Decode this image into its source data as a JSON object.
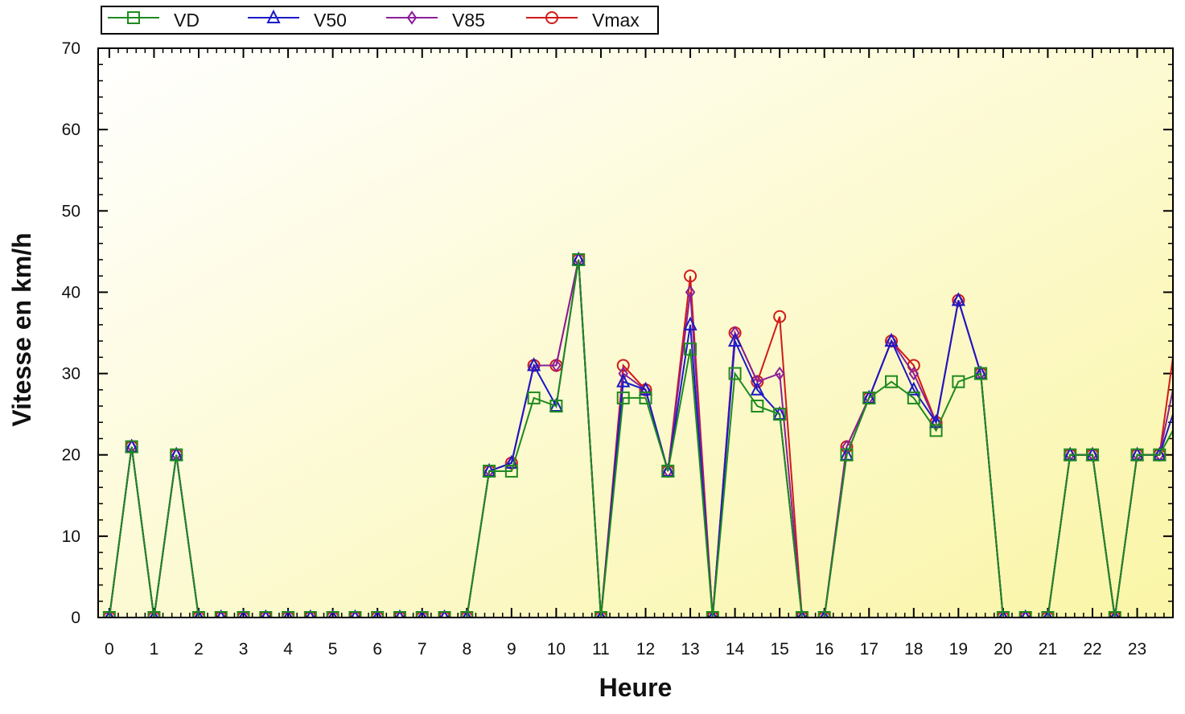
{
  "chart_data": {
    "type": "line",
    "title": "",
    "xlabel": "Heure",
    "ylabel": "Vitesse en km/h",
    "xlim": [
      -0.25,
      23.8
    ],
    "ylim": [
      0,
      70
    ],
    "xticks": [
      0,
      1,
      2,
      3,
      4,
      5,
      6,
      7,
      8,
      9,
      10,
      11,
      12,
      13,
      14,
      15,
      16,
      17,
      18,
      19,
      20,
      21,
      22,
      23
    ],
    "yticks": [
      0,
      10,
      20,
      30,
      40,
      50,
      60,
      70
    ],
    "grid": false,
    "legend_position": "top-left",
    "background": [
      "#ffffff",
      "#fbf7b0"
    ],
    "x": [
      0,
      0.5,
      1,
      1.5,
      2,
      2.5,
      3,
      3.5,
      4,
      4.5,
      5,
      5.5,
      6,
      6.5,
      7,
      7.5,
      8,
      8.5,
      9,
      9.5,
      10,
      10.5,
      11,
      11.5,
      12,
      12.5,
      13,
      13.5,
      14,
      14.5,
      15,
      15.5,
      16,
      16.5,
      17,
      17.5,
      18,
      18.5,
      19,
      19.5,
      20,
      20.5,
      21,
      21.5,
      22,
      22.5,
      23,
      23.5,
      23.8
    ],
    "series": [
      {
        "name": "VD",
        "color": "#1f8a1f",
        "marker": "square",
        "values": [
          0,
          21,
          0,
          20,
          0,
          0,
          0,
          0,
          0,
          0,
          0,
          0,
          0,
          0,
          0,
          0,
          0,
          18,
          18,
          27,
          26,
          44,
          0,
          27,
          27,
          18,
          33,
          0,
          30,
          26,
          25,
          0,
          0,
          20,
          27,
          29,
          27,
          23,
          29,
          30,
          0,
          0,
          0,
          20,
          20,
          0,
          20,
          20,
          23
        ]
      },
      {
        "name": "V50",
        "color": "#1a1ac8",
        "marker": "triangle",
        "values": [
          0,
          21,
          0,
          20,
          0,
          0,
          0,
          0,
          0,
          0,
          0,
          0,
          0,
          0,
          0,
          0,
          0,
          18,
          19,
          31,
          26,
          44,
          0,
          29,
          28,
          18,
          36,
          0,
          34,
          28,
          25,
          0,
          0,
          20,
          27,
          34,
          28,
          24,
          39,
          30,
          0,
          0,
          0,
          20,
          20,
          0,
          20,
          20,
          25
        ]
      },
      {
        "name": "V85",
        "color": "#8b1f9a",
        "marker": "diamond",
        "values": [
          0,
          21,
          0,
          20,
          0,
          0,
          0,
          0,
          0,
          0,
          0,
          0,
          0,
          0,
          0,
          0,
          0,
          18,
          19,
          31,
          31,
          44,
          0,
          30,
          28,
          18,
          40,
          0,
          35,
          29,
          30,
          0,
          0,
          21,
          27,
          34,
          30,
          24,
          39,
          30,
          0,
          0,
          0,
          20,
          20,
          0,
          20,
          20,
          28
        ]
      },
      {
        "name": "Vmax",
        "color": "#d01a1a",
        "marker": "circle",
        "values": [
          0,
          21,
          0,
          20,
          0,
          0,
          0,
          0,
          0,
          0,
          0,
          0,
          0,
          0,
          0,
          0,
          0,
          18,
          19,
          31,
          31,
          44,
          0,
          31,
          28,
          18,
          42,
          0,
          35,
          29,
          37,
          0,
          0,
          21,
          27,
          34,
          31,
          24,
          39,
          30,
          0,
          0,
          0,
          20,
          20,
          0,
          20,
          20,
          32
        ]
      }
    ]
  }
}
